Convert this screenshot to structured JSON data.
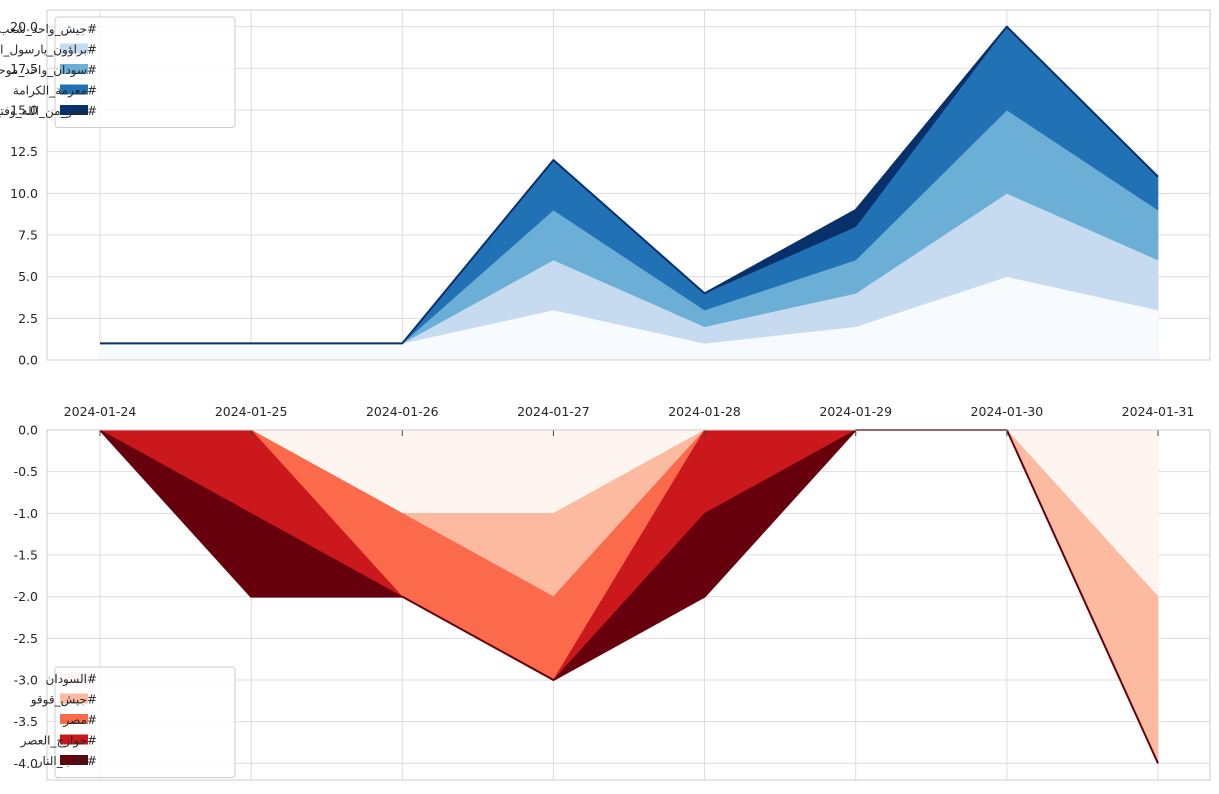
{
  "dates": [
    "2024-01-24",
    "2024-01-25",
    "2024-01-26",
    "2024-01-27",
    "2024-01-28",
    "2024-01-29",
    "2024-01-30",
    "2024-01-31"
  ],
  "chart_data": [
    {
      "type": "area",
      "stacked": true,
      "x": [
        "2024-01-24",
        "2024-01-25",
        "2024-01-26",
        "2024-01-27",
        "2024-01-28",
        "2024-01-29",
        "2024-01-30",
        "2024-01-31"
      ],
      "ylim": [
        0,
        21
      ],
      "yticks": [
        0.0,
        2.5,
        5.0,
        7.5,
        10.0,
        12.5,
        15.0,
        17.5,
        20.0
      ],
      "ytick_labels": [
        "0.0",
        "2.5",
        "5.0",
        "7.5",
        "10.0",
        "12.5",
        "15.0",
        "17.5",
        "20.0"
      ],
      "xtick_labels_shown": false,
      "grid": true,
      "legend_position": "top-left",
      "series": [
        {
          "name": "#جيش_واحد_شعب_واحد",
          "color": "#f7fbff",
          "values": [
            1,
            1,
            1,
            3,
            1,
            2,
            5,
            3
          ]
        },
        {
          "name": "#براؤون_يارسول_الله",
          "color": "#c6dbef",
          "values": [
            0,
            0,
            0,
            3,
            1,
            2,
            5,
            3
          ]
        },
        {
          "name": "#سودان_واحد_موحد",
          "color": "#6baed6",
          "values": [
            0,
            0,
            0,
            3,
            1,
            2,
            5,
            3
          ]
        },
        {
          "name": "#معرمة_الكرامة",
          "color": "#2171b5",
          "values": [
            0,
            0,
            0,
            3,
            1,
            2,
            5,
            2
          ]
        },
        {
          "name": "#نصر_من_الله_وفتح_قريب",
          "color": "#08306b",
          "values": [
            0,
            0,
            0,
            0,
            0,
            1,
            0,
            0
          ]
        }
      ]
    },
    {
      "type": "area",
      "stacked": true,
      "negative": true,
      "x": [
        "2024-01-24",
        "2024-01-25",
        "2024-01-26",
        "2024-01-27",
        "2024-01-28",
        "2024-01-29",
        "2024-01-30",
        "2024-01-31"
      ],
      "ylim": [
        -4.2,
        0
      ],
      "yticks": [
        0.0,
        -0.5,
        -1.0,
        -1.5,
        -2.0,
        -2.5,
        -3.0,
        -3.5,
        -4.0
      ],
      "ytick_labels": [
        "0.0",
        "-0.5",
        "-1.0",
        "-1.5",
        "-2.0",
        "-2.5",
        "-3.0",
        "-3.5",
        "-4.0"
      ],
      "xtick_labels_position": "top",
      "grid": true,
      "legend_position": "bottom-left",
      "series": [
        {
          "name": "#السودان",
          "color": "#fff5f0",
          "values": [
            0,
            0,
            -1,
            -1,
            0,
            0,
            0,
            -2
          ]
        },
        {
          "name": "#جيش_قوقو",
          "color": "#fcbba1",
          "values": [
            0,
            0,
            0,
            -1,
            0,
            0,
            0,
            -2
          ]
        },
        {
          "name": "#مصر",
          "color": "#fb6a4a",
          "values": [
            0,
            0,
            -1,
            -1,
            0,
            0,
            0,
            0
          ]
        },
        {
          "name": "#خوارج_العصر",
          "color": "#cb181d",
          "values": [
            0,
            -1,
            0,
            0,
            -1,
            0,
            0,
            0
          ]
        },
        {
          "name": "#كلاب_النار",
          "color": "#67000d",
          "values": [
            0,
            -1,
            0,
            0,
            -1,
            0,
            0,
            0
          ]
        }
      ]
    }
  ]
}
